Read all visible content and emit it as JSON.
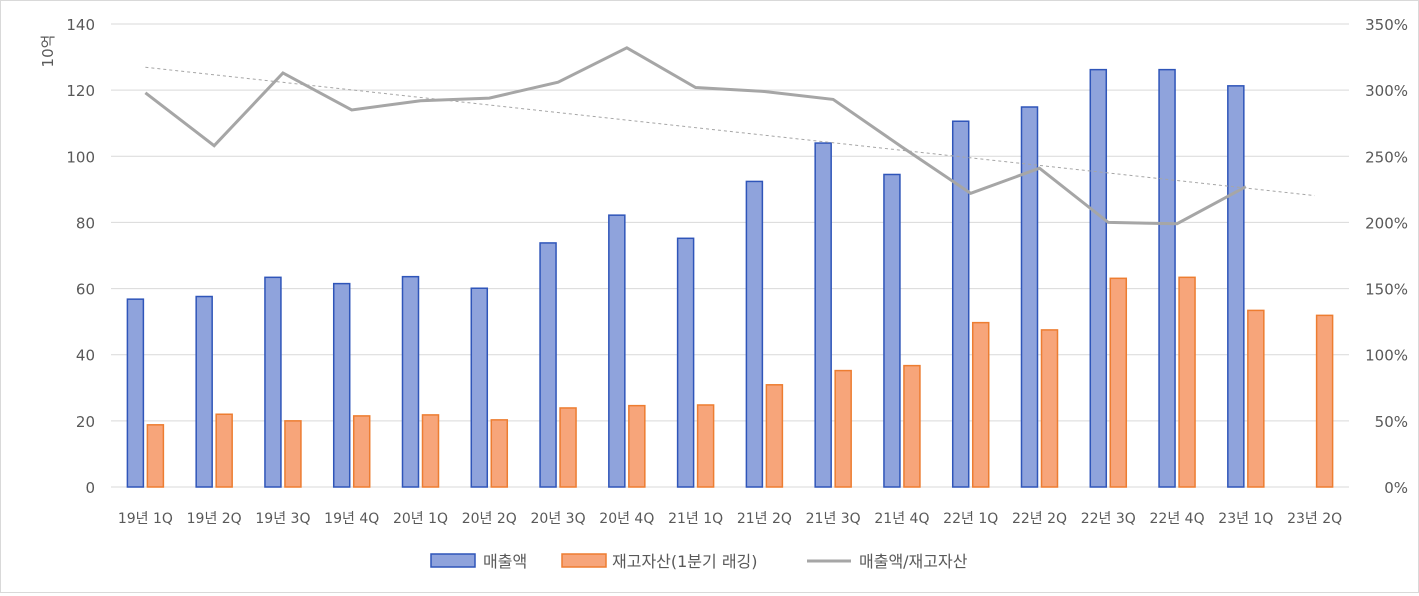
{
  "chart_data": {
    "type": "bar",
    "title": "",
    "ylabel": "10억",
    "xlabel": "",
    "categories": [
      "19년 1Q",
      "19년 2Q",
      "19년 3Q",
      "19년 4Q",
      "20년 1Q",
      "20년 2Q",
      "20년 3Q",
      "20년 4Q",
      "21년 1Q",
      "21년 2Q",
      "21년 3Q",
      "21년 4Q",
      "22년 1Q",
      "22년 2Q",
      "22년 3Q",
      "22년 4Q",
      "23년 1Q",
      "23년 2Q"
    ],
    "ylim": [
      0,
      140
    ],
    "y_ticks": [
      "0",
      "20",
      "40",
      "60",
      "80",
      "100",
      "120",
      "140"
    ],
    "y2lim": [
      0,
      3.5
    ],
    "y2_ticks": [
      "0%",
      "50%",
      "100%",
      "150%",
      "200%",
      "250%",
      "300%",
      "350%"
    ],
    "grid": true,
    "legend_position": "bottom",
    "series": [
      {
        "name": "매출액",
        "kind": "bar",
        "color": "#8fa3dc",
        "values": [
          56.8,
          57.6,
          63.4,
          61.5,
          63.6,
          60.1,
          73.8,
          82.2,
          75.2,
          92.4,
          104.0,
          94.5,
          110.6,
          114.9,
          126.2,
          126.2,
          121.3,
          null
        ]
      },
      {
        "name": "재고자산(1분기 래깅)",
        "kind": "bar",
        "color": "#f7a57a",
        "values": [
          18.8,
          22.0,
          20.0,
          21.5,
          21.8,
          20.3,
          23.9,
          24.6,
          24.8,
          30.9,
          35.2,
          36.7,
          49.7,
          47.5,
          63.1,
          63.4,
          53.4,
          51.9
        ]
      },
      {
        "name": "매출액/재고자산",
        "kind": "line",
        "axis": "right",
        "color": "#a6a6a6",
        "values": [
          2.98,
          2.58,
          3.13,
          2.85,
          2.92,
          2.94,
          3.06,
          3.32,
          3.02,
          2.99,
          2.93,
          2.57,
          2.22,
          2.41,
          2.0,
          1.99,
          2.27,
          null
        ]
      }
    ],
    "trendline": {
      "series": "매출액/재고자산",
      "kind": "linear",
      "color": "#a6a6a6"
    }
  }
}
